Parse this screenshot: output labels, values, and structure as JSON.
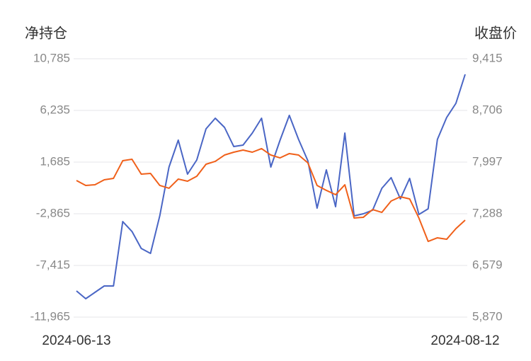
{
  "chart_data": {
    "type": "line",
    "y_label": "净持仓",
    "y2_label": "收盘价",
    "categories": [
      "2024-06-13",
      null,
      null,
      null,
      null,
      null,
      null,
      null,
      null,
      null,
      null,
      null,
      null,
      null,
      null,
      null,
      null,
      null,
      null,
      null,
      null,
      null,
      null,
      null,
      null,
      null,
      null,
      null,
      null,
      null,
      null,
      null,
      null,
      null,
      null,
      null,
      null,
      null,
      null,
      null,
      null,
      null,
      "2024-08-12"
    ],
    "ylim": [
      -11965,
      10785
    ],
    "yticks": [
      {
        "value": -11965,
        "label": "-11,965"
      },
      {
        "value": -7415,
        "label": "-7,415"
      },
      {
        "value": -2865,
        "label": "-2,865"
      },
      {
        "value": 1685,
        "label": "1,685"
      },
      {
        "value": 6235,
        "label": "6,235"
      },
      {
        "value": 10785,
        "label": "10,785"
      }
    ],
    "y2lim": [
      5870,
      9415
    ],
    "y2ticks": [
      {
        "value": 5870,
        "label": "5,870"
      },
      {
        "value": 6579,
        "label": "6,579"
      },
      {
        "value": 7288,
        "label": "7,288"
      },
      {
        "value": 7997,
        "label": "7,997"
      },
      {
        "value": 8706,
        "label": "8,706"
      },
      {
        "value": 9415,
        "label": "9,415"
      }
    ],
    "grid": true,
    "series": [
      {
        "color": "#4a66c5",
        "values": [
          -9659,
          -10345,
          -9784,
          -9223,
          -9223,
          -3551,
          -4424,
          -5919,
          -6356,
          -3053,
          1249,
          3617,
          625,
          1872,
          4614,
          5549,
          4739,
          3056,
          3181,
          4240,
          5549,
          1249,
          3617,
          5799,
          3679,
          1810,
          -2367,
          999,
          -2242,
          4240,
          -3053,
          -2865,
          -2553,
          -621,
          314,
          -1556,
          251,
          -2928,
          -2429,
          3679,
          5612,
          6858,
          9414
        ]
      },
      {
        "color": "#f0601a",
        "axis": "y2",
        "values": [
          7745,
          7677,
          7686,
          7754,
          7774,
          8016,
          8036,
          7832,
          7842,
          7677,
          7638,
          7764,
          7735,
          7803,
          7968,
          8007,
          8094,
          8133,
          8162,
          8133,
          8182,
          8094,
          8055,
          8114,
          8094,
          7987,
          7677,
          7609,
          7550,
          7686,
          7230,
          7240,
          7346,
          7307,
          7463,
          7521,
          7492,
          7230,
          6909,
          6958,
          6938,
          7084,
          7201
        ]
      }
    ]
  }
}
